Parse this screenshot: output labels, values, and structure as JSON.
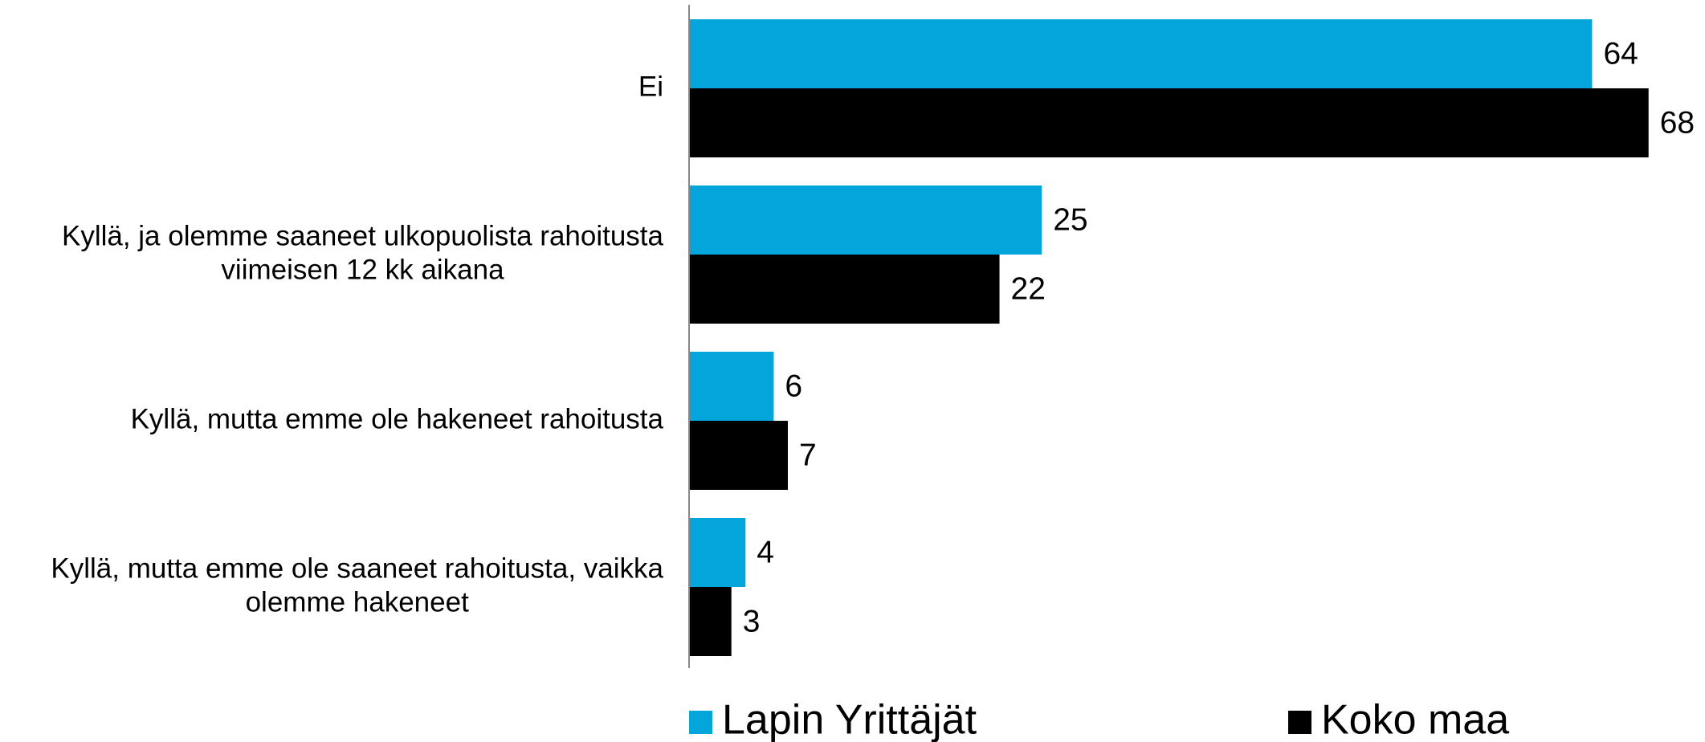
{
  "chart_data": {
    "type": "bar",
    "orientation": "horizontal",
    "categories": [
      [
        "Ei"
      ],
      [
        "Kyllä, ja olemme saaneet ulkopuolista rahoitusta",
        "viimeisen 12 kk aikana"
      ],
      [
        "Kyllä, mutta emme ole hakeneet rahoitusta"
      ],
      [
        "Kyllä, mutta emme ole saaneet rahoitusta, vaikka",
        "olemme hakeneet"
      ]
    ],
    "series": [
      {
        "name": "Lapin Yrittäjät",
        "color": "#03a5db",
        "values": [
          64,
          25,
          6,
          4
        ]
      },
      {
        "name": "Koko maa",
        "color": "#000000",
        "values": [
          68,
          22,
          7,
          3
        ]
      }
    ],
    "xlim": [
      0,
      72
    ]
  }
}
